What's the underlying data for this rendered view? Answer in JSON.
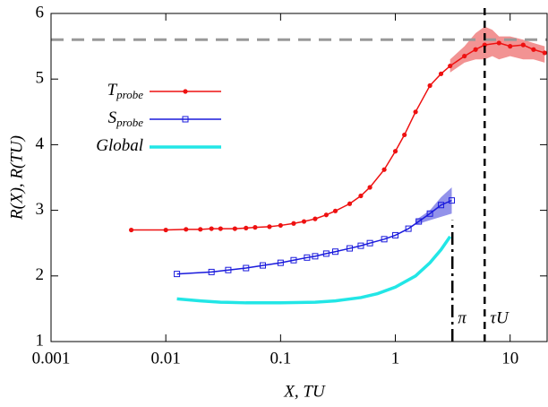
{
  "chart_data": {
    "type": "line",
    "x_label": "X, TU",
    "y_label": "R(X), R(TU)",
    "xscale": "log",
    "xlim": [
      0.001,
      21
    ],
    "ylim": [
      1,
      6
    ],
    "xticks": [
      0.001,
      0.01,
      0.1,
      1,
      10
    ],
    "yticks": [
      1,
      2,
      3,
      4,
      5,
      6
    ],
    "series": [
      {
        "name": "T",
        "name_sub": "probe",
        "color": "#ee1111",
        "marker": "circle",
        "x": [
          0.005,
          0.01,
          0.015,
          0.02,
          0.025,
          0.03,
          0.04,
          0.05,
          0.06,
          0.08,
          0.1,
          0.13,
          0.16,
          0.2,
          0.25,
          0.3,
          0.4,
          0.5,
          0.6,
          0.8,
          1,
          1.2,
          1.5,
          2,
          2.5,
          3,
          4,
          5,
          6,
          8,
          10,
          13,
          16,
          20
        ],
        "values": [
          2.7,
          2.7,
          2.71,
          2.71,
          2.72,
          2.72,
          2.72,
          2.73,
          2.74,
          2.75,
          2.77,
          2.8,
          2.83,
          2.87,
          2.93,
          2.99,
          3.1,
          3.22,
          3.35,
          3.62,
          3.9,
          4.15,
          4.5,
          4.9,
          5.08,
          5.2,
          5.35,
          5.45,
          5.52,
          5.55,
          5.5,
          5.52,
          5.45,
          5.4
        ],
        "band": {
          "color": "#f08080",
          "x": [
            3,
            4,
            5,
            6,
            7,
            8,
            10,
            13,
            16,
            20
          ],
          "low": [
            5.1,
            5.25,
            5.3,
            5.3,
            5.35,
            5.3,
            5.35,
            5.3,
            5.3,
            5.25
          ],
          "high": [
            5.3,
            5.5,
            5.7,
            5.8,
            5.75,
            5.65,
            5.65,
            5.6,
            5.55,
            5.5
          ]
        }
      },
      {
        "name": "S",
        "name_sub": "probe",
        "color": "#1a1adc",
        "marker": "square",
        "x": [
          0.0125,
          0.025,
          0.035,
          0.05,
          0.07,
          0.1,
          0.13,
          0.17,
          0.2,
          0.25,
          0.3,
          0.4,
          0.5,
          0.6,
          0.8,
          1,
          1.3,
          1.6,
          2,
          2.5,
          3.1
        ],
        "values": [
          2.03,
          2.06,
          2.09,
          2.12,
          2.16,
          2.2,
          2.24,
          2.28,
          2.3,
          2.34,
          2.37,
          2.42,
          2.46,
          2.5,
          2.56,
          2.62,
          2.72,
          2.83,
          2.95,
          3.08,
          3.15
        ],
        "band": {
          "color": "#7f7fe6",
          "x": [
            1.5,
            2,
            2.5,
            3.1
          ],
          "low": [
            2.78,
            2.85,
            2.9,
            2.95
          ],
          "high": [
            2.85,
            3.0,
            3.2,
            3.35
          ]
        }
      },
      {
        "name": "Global",
        "color": "#22e6e6",
        "x": [
          0.0125,
          0.02,
          0.03,
          0.05,
          0.1,
          0.2,
          0.3,
          0.5,
          0.7,
          1,
          1.5,
          2,
          2.5,
          3
        ],
        "values": [
          1.65,
          1.62,
          1.6,
          1.59,
          1.59,
          1.6,
          1.62,
          1.67,
          1.73,
          1.83,
          2.0,
          2.2,
          2.4,
          2.6
        ]
      }
    ],
    "hline": {
      "value": 5.6,
      "color": "#999999"
    },
    "vlines": [
      {
        "x": 3.14,
        "ylim": [
          1,
          2.85
        ],
        "label": "π"
      },
      {
        "x": 6,
        "ylim": [
          1,
          6
        ],
        "label": "τU"
      }
    ]
  }
}
